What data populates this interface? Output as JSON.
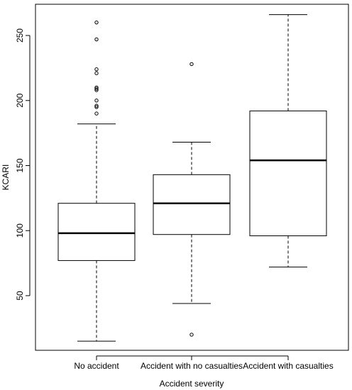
{
  "chart_data": {
    "type": "boxplot",
    "xlabel": "Accident severity",
    "ylabel": "KCARI",
    "ylim": [
      8,
      274
    ],
    "yticks": [
      50,
      100,
      150,
      200,
      250
    ],
    "grid": false,
    "legend": "none",
    "categories": [
      "No accident",
      "Accident with no casualties",
      "Accident with casualties"
    ],
    "boxes": [
      {
        "category": "No accident",
        "whisker_low": 15,
        "q1": 77,
        "median": 98,
        "q3": 121,
        "whisker_high": 182,
        "outliers": [
          190,
          195,
          196,
          200,
          208,
          209,
          210,
          221,
          224,
          247,
          260
        ]
      },
      {
        "category": "Accident with no casualties",
        "whisker_low": 44,
        "q1": 97,
        "median": 121,
        "q3": 143,
        "whisker_high": 168,
        "outliers": [
          20,
          228
        ]
      },
      {
        "category": "Accident with casualties",
        "whisker_low": 72,
        "q1": 96,
        "median": 154,
        "q3": 192,
        "whisker_high": 266,
        "outliers": []
      }
    ]
  }
}
